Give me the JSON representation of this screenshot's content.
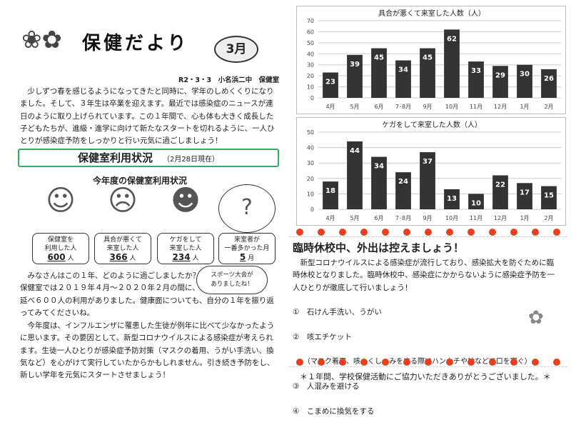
{
  "header": {
    "title": "保健だより",
    "month": "3月",
    "date_line": "R2・3・3　小名浜二中　保健室"
  },
  "intro": "　少しずつ春を感じるようになってきたと同時に、学年のしめくくりになりました。そして、３年生は卒業を迎えます。最近では感染症のニュースが連日のように取り上げられています。この１年間で、心も体も大きく成長した子どもたちが、進級・進学に向けて新たなスタートを切れるように、一人ひとりが感染症予防をしっかりと行い元気に過ごしましょう！",
  "section": {
    "title": "保健室利用状況",
    "note": "（2月28日現在）"
  },
  "usage": {
    "title": "今年度の保健室利用状況",
    "boxes": [
      {
        "label": "保健室を\n利用した人",
        "value": "600",
        "unit": "人"
      },
      {
        "label": "具合が悪くて\n来室した人",
        "value": "366",
        "unit": "人"
      },
      {
        "label": "ケガをして\n来室した人",
        "value": "234",
        "unit": "人"
      },
      {
        "label": "来室者が\n一番多かった月",
        "value": "5",
        "unit": "月"
      }
    ],
    "bubble": "スポーツ大会が\nありましたね！"
  },
  "body1": "　みなさんはこの１年、どのように過ごしましたか？\n保健室では２０１９年４月～２０２０年２月の間に、\n延べ６００人の利用がありました。健康面についても、自分の１年を振り返ってみてくださいね。",
  "body2": "　今年度は、インフルエンザに罹患した生徒が例年に比べて少なかったように思います。その要因として、新型コロナウイルスによる感染症が考えられます。生徒一人ひとりが感染症予防対策（マスクの着用、うがい手洗い、換気など）を心がけて実行していたからかもしれません。引き続き予防をし、新しい学年を元気にスタートさせましょう！",
  "notice": {
    "title": "臨時休校中、外出は控えましょう！",
    "text": "　新型コロナウイルスによる感染症が流行しており、感染拡大を防ぐために臨時休校となりました。臨時休校中、感染症にかからないように感染症予防を一人ひとりが徹底して行いましょう！",
    "items": [
      "①　石けん手洗い、うがい",
      "②　咳エチケット",
      "　　（マスク着用、咳・くしゃみをする際はハンカチや袖などで口を塞ぐ）",
      "③　人混みを避ける",
      "④　こまめに換気をする"
    ]
  },
  "thanks": "＊１年間、学校保健活動にご協力いただきありがとうございました。＊",
  "chart_data": [
    {
      "type": "bar",
      "title": "具合が悪くて来室した人数（人）",
      "categories": [
        "4月",
        "5月",
        "6月",
        "7･8月",
        "9月",
        "10月",
        "11月",
        "12月",
        "1月",
        "2月"
      ],
      "values": [
        23,
        39,
        45,
        34,
        45,
        62,
        33,
        29,
        30,
        26
      ],
      "ylim": [
        0,
        70
      ],
      "ystep": 10,
      "grid": true,
      "bar_color": "#333333"
    },
    {
      "type": "bar",
      "title": "ケガをして来室した人数（人）",
      "categories": [
        "4月",
        "5月",
        "6月",
        "7･8月",
        "9月",
        "10月",
        "11月",
        "12月",
        "1月",
        "2月"
      ],
      "values": [
        18,
        44,
        34,
        24,
        37,
        13,
        10,
        22,
        17,
        15
      ],
      "ylim": [
        0,
        50
      ],
      "ystep": 10,
      "grid": true,
      "bar_color": "#333333"
    }
  ]
}
